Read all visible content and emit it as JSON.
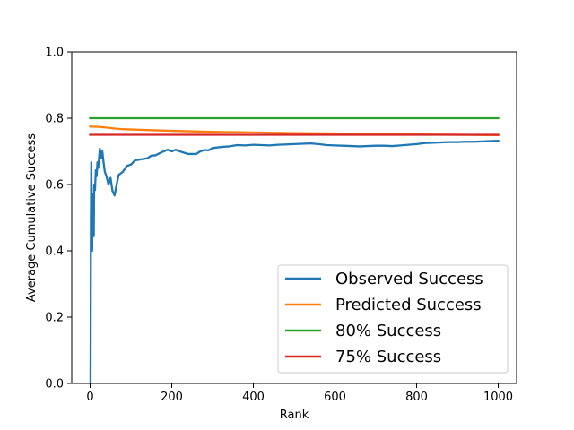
{
  "chart_data": {
    "type": "line",
    "title": "",
    "xlabel": "Rank",
    "ylabel": "Average Cumulative Success",
    "xlim": [
      -45,
      1045
    ],
    "ylim": [
      0.0,
      1.0
    ],
    "xticks": [
      0,
      200,
      400,
      600,
      800,
      1000
    ],
    "yticks": [
      0.0,
      0.2,
      0.4,
      0.6,
      0.8,
      1.0
    ],
    "xtick_labels": [
      "0",
      "200",
      "400",
      "600",
      "800",
      "1000"
    ],
    "ytick_labels": [
      "0.0",
      "0.2",
      "0.4",
      "0.6",
      "0.8",
      "1.0"
    ],
    "grid": false,
    "legend_position": "bottom-right",
    "series": [
      {
        "name": "Observed Success",
        "color": "#1f77b4",
        "x": [
          1,
          2,
          3,
          4,
          5,
          6,
          7,
          8,
          9,
          10,
          12,
          14,
          16,
          18,
          20,
          22,
          24,
          26,
          28,
          30,
          33,
          36,
          40,
          45,
          50,
          55,
          60,
          65,
          70,
          80,
          90,
          100,
          110,
          120,
          130,
          140,
          150,
          160,
          170,
          180,
          190,
          200,
          210,
          220,
          230,
          240,
          250,
          260,
          270,
          280,
          290,
          300,
          320,
          340,
          360,
          380,
          400,
          420,
          440,
          460,
          480,
          500,
          520,
          540,
          560,
          580,
          600,
          620,
          640,
          660,
          680,
          700,
          720,
          740,
          760,
          780,
          800,
          820,
          840,
          860,
          880,
          900,
          920,
          940,
          960,
          980,
          1000
        ],
        "y": [
          0.0,
          0.5,
          0.667,
          0.5,
          0.4,
          0.5,
          0.571,
          0.5,
          0.444,
          0.6,
          0.583,
          0.643,
          0.625,
          0.667,
          0.65,
          0.682,
          0.708,
          0.692,
          0.679,
          0.7,
          0.667,
          0.639,
          0.625,
          0.6,
          0.62,
          0.58,
          0.567,
          0.6,
          0.629,
          0.638,
          0.656,
          0.66,
          0.673,
          0.675,
          0.677,
          0.679,
          0.687,
          0.688,
          0.694,
          0.7,
          0.705,
          0.7,
          0.705,
          0.7,
          0.696,
          0.692,
          0.692,
          0.692,
          0.7,
          0.704,
          0.703,
          0.71,
          0.713,
          0.715,
          0.719,
          0.718,
          0.72,
          0.719,
          0.718,
          0.72,
          0.721,
          0.722,
          0.723,
          0.724,
          0.722,
          0.719,
          0.718,
          0.717,
          0.716,
          0.715,
          0.716,
          0.717,
          0.717,
          0.716,
          0.718,
          0.72,
          0.722,
          0.725,
          0.726,
          0.727,
          0.728,
          0.728,
          0.729,
          0.729,
          0.73,
          0.731,
          0.732
        ]
      },
      {
        "name": "Predicted Success",
        "color": "#ff7f0e",
        "x": [
          0,
          20,
          40,
          60,
          80,
          100,
          150,
          200,
          300,
          400,
          500,
          600,
          700,
          800,
          900,
          1000
        ],
        "y": [
          0.775,
          0.774,
          0.772,
          0.769,
          0.767,
          0.766,
          0.764,
          0.762,
          0.759,
          0.757,
          0.755,
          0.754,
          0.752,
          0.751,
          0.75,
          0.749
        ]
      },
      {
        "name": "80% Success",
        "color": "#2ca02c",
        "x": [
          0,
          1000
        ],
        "y": [
          0.8,
          0.8
        ]
      },
      {
        "name": "75% Success",
        "color": "#d62728",
        "x": [
          0,
          1000
        ],
        "y": [
          0.75,
          0.75
        ]
      }
    ]
  }
}
